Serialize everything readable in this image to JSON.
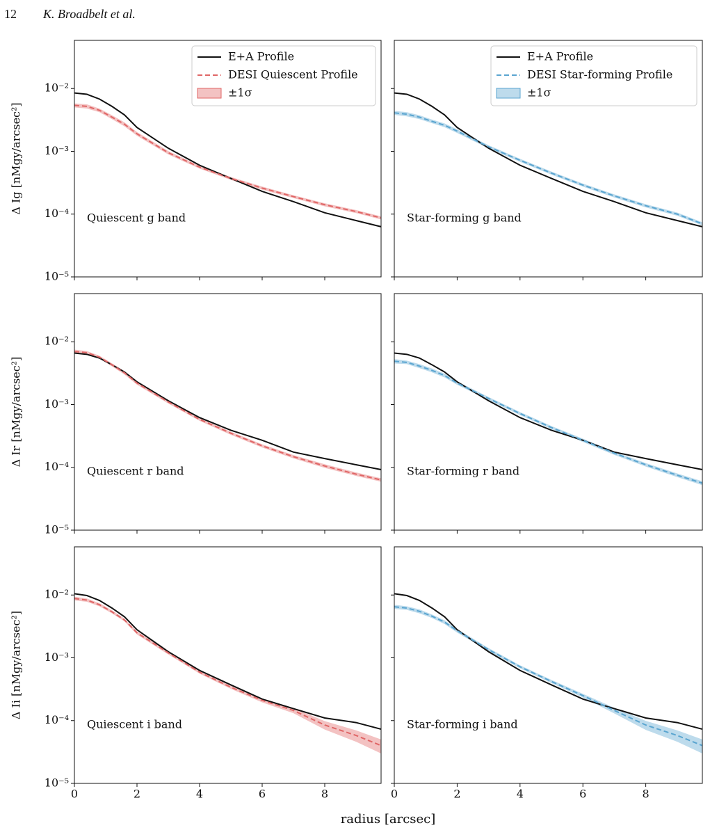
{
  "header": {
    "page": "12",
    "authors": "K. Broadbelt et al."
  },
  "chart_data": [
    {
      "type": "line",
      "ylabel": "Δ Ig [nMgy/arcsec²]",
      "annotation": "Quiescent g band",
      "legend": "upper right",
      "log": true,
      "xlim": [
        0,
        9.8
      ],
      "xticks": [
        0,
        2,
        4,
        6,
        8
      ],
      "ylim": [
        1e-05,
        0.0585
      ],
      "yticks": [
        {
          "value": 1e-05,
          "label": "10⁻⁵"
        },
        {
          "value": 0.0001,
          "label": "10⁻⁴"
        },
        {
          "value": 0.001,
          "label": "10⁻³"
        },
        {
          "value": 0.01,
          "label": "10⁻²"
        }
      ],
      "x": [
        0,
        0.4,
        0.8,
        1.2,
        1.6,
        2,
        3,
        4,
        5,
        6,
        7,
        8,
        9,
        9.8
      ],
      "series": [
        {
          "name": "E+A Profile",
          "color": "#111111",
          "values": [
            0.0085,
            0.0081,
            0.0068,
            0.0052,
            0.0038,
            0.0024,
            0.00112,
            0.0006,
            0.00037,
            0.00023,
            0.000158,
            0.000105,
            7.9e-05,
            6.3e-05
          ]
        },
        {
          "name": "DESI Quiescent Profile",
          "color": "#e06666",
          "sigma_name": "±1σ",
          "values": [
            0.0054,
            0.0052,
            0.0045,
            0.0035,
            0.0027,
            0.0019,
            0.00095,
            0.00056,
            0.00037,
            0.00026,
            0.00019,
            0.000141,
            0.00011,
            8.7e-05
          ],
          "sigma": [
            0.0004,
            0.0004,
            0.0003,
            0.00025,
            0.0002,
            0.00013,
            6e-05,
            3e-05,
            2e-05,
            1.5e-05,
            1e-05,
            8e-06,
            6e-06,
            5e-06
          ]
        }
      ]
    },
    {
      "type": "line",
      "annotation": "Star-forming g band",
      "legend": "upper right",
      "log": true,
      "xlim": [
        0,
        9.8
      ],
      "xticks": [
        0,
        2,
        4,
        6,
        8
      ],
      "ylim": [
        1e-05,
        0.0585
      ],
      "yticks": [
        1e-05,
        0.0001,
        0.001,
        0.01
      ],
      "x": [
        0,
        0.4,
        0.8,
        1.2,
        1.6,
        2,
        3,
        4,
        5,
        6,
        7,
        8,
        9,
        9.8
      ],
      "series": [
        {
          "name": "E+A Profile",
          "color": "#111111",
          "values": [
            0.0085,
            0.0081,
            0.0068,
            0.0052,
            0.0038,
            0.0024,
            0.00112,
            0.0006,
            0.00037,
            0.00023,
            0.000158,
            0.000105,
            7.9e-05,
            6.3e-05
          ]
        },
        {
          "name": "DESI Star-forming Profile",
          "color": "#5aa5d0",
          "sigma_name": "±1σ",
          "values": [
            0.0041,
            0.0039,
            0.0035,
            0.003,
            0.0026,
            0.0021,
            0.00118,
            0.00072,
            0.00045,
            0.00029,
            0.000195,
            0.000136,
            0.0001,
            7e-05
          ],
          "sigma": [
            0.0003,
            0.0003,
            0.00025,
            0.0002,
            0.00018,
            0.00014,
            7e-05,
            4e-05,
            2.5e-05,
            1.6e-05,
            1.1e-05,
            8e-06,
            6e-06,
            4e-06
          ]
        }
      ]
    },
    {
      "type": "line",
      "ylabel": "Δ Ir [nMgy/arcsec²]",
      "annotation": "Quiescent r band",
      "log": true,
      "xlim": [
        0,
        9.8
      ],
      "xticks": [
        0,
        2,
        4,
        6,
        8
      ],
      "ylim": [
        1e-05,
        0.0585
      ],
      "yticks": [
        {
          "value": 1e-05,
          "label": "10⁻⁵"
        },
        {
          "value": 0.0001,
          "label": "10⁻⁴"
        },
        {
          "value": 0.001,
          "label": "10⁻³"
        },
        {
          "value": 0.01,
          "label": "10⁻²"
        }
      ],
      "x": [
        0,
        0.4,
        0.8,
        1.2,
        1.6,
        2,
        3,
        4,
        5,
        6,
        7,
        8,
        9,
        9.8
      ],
      "series": [
        {
          "name": "E+A Profile",
          "color": "#111111",
          "values": [
            0.0066,
            0.0063,
            0.0055,
            0.0043,
            0.0033,
            0.0023,
            0.00115,
            0.00062,
            0.00039,
            0.00027,
            0.000175,
            0.000138,
            0.00011,
            9.2e-05
          ]
        },
        {
          "name": "DESI Quiescent Profile",
          "color": "#e06666",
          "sigma_name": "±1σ",
          "values": [
            0.007,
            0.0067,
            0.0057,
            0.0043,
            0.0032,
            0.0022,
            0.0011,
            0.00058,
            0.00035,
            0.00022,
            0.000148,
            0.000105,
            7.8e-05,
            6.3e-05
          ],
          "sigma": [
            0.0005,
            0.0004,
            0.0003,
            0.00025,
            0.0002,
            0.00013,
            6e-05,
            3e-05,
            2e-05,
            1.3e-05,
            9e-06,
            7e-06,
            5e-06,
            4e-06
          ]
        }
      ]
    },
    {
      "type": "line",
      "annotation": "Star-forming r band",
      "log": true,
      "xlim": [
        0,
        9.8
      ],
      "xticks": [
        0,
        2,
        4,
        6,
        8
      ],
      "ylim": [
        1e-05,
        0.0585
      ],
      "yticks": [
        1e-05,
        0.0001,
        0.001,
        0.01
      ],
      "x": [
        0,
        0.4,
        0.8,
        1.2,
        1.6,
        2,
        3,
        4,
        5,
        6,
        7,
        8,
        9,
        9.8
      ],
      "series": [
        {
          "name": "E+A Profile",
          "color": "#111111",
          "values": [
            0.0066,
            0.0063,
            0.0055,
            0.0043,
            0.0033,
            0.0023,
            0.00115,
            0.00062,
            0.00039,
            0.00027,
            0.000175,
            0.000138,
            0.00011,
            9.2e-05
          ]
        },
        {
          "name": "DESI Star-forming Profile",
          "color": "#5aa5d0",
          "sigma_name": "±1σ",
          "values": [
            0.0049,
            0.0047,
            0.0041,
            0.0035,
            0.0029,
            0.0022,
            0.00125,
            0.00072,
            0.00043,
            0.00027,
            0.000168,
            0.00011,
            7.5e-05,
            5.6e-05
          ],
          "sigma": [
            0.0004,
            0.0003,
            0.0003,
            0.00025,
            0.0002,
            0.00014,
            7e-05,
            4e-05,
            2.5e-05,
            1.6e-05,
            1e-05,
            7e-06,
            5e-06,
            4e-06
          ]
        }
      ]
    },
    {
      "type": "line",
      "ylabel": "Δ Ii [nMgy/arcsec²]",
      "annotation": "Quiescent i band",
      "xlabel": "radius [arcsec]",
      "log": true,
      "xlim": [
        0,
        9.8
      ],
      "xticks": [
        0,
        2,
        4,
        6,
        8
      ],
      "ylim": [
        1e-05,
        0.0585
      ],
      "yticks": [
        {
          "value": 1e-05,
          "label": "10⁻⁵"
        },
        {
          "value": 0.0001,
          "label": "10⁻⁴"
        },
        {
          "value": 0.001,
          "label": "10⁻³"
        },
        {
          "value": 0.01,
          "label": "10⁻²"
        }
      ],
      "x": [
        0,
        0.4,
        0.8,
        1.2,
        1.6,
        2,
        3,
        4,
        5,
        6,
        7,
        8,
        9,
        9.8
      ],
      "series": [
        {
          "name": "E+A Profile",
          "color": "#111111",
          "values": [
            0.0105,
            0.0098,
            0.0082,
            0.0062,
            0.0045,
            0.0028,
            0.00125,
            0.00063,
            0.00037,
            0.00022,
            0.000155,
            0.00011,
            9.3e-05,
            7.3e-05
          ]
        },
        {
          "name": "DESI Quiescent Profile",
          "color": "#e06666",
          "sigma_name": "±1σ",
          "values": [
            0.0088,
            0.0083,
            0.007,
            0.0054,
            0.004,
            0.0025,
            0.0012,
            0.00059,
            0.00034,
            0.00021,
            0.000145,
            8.5e-05,
            5.8e-05,
            4e-05
          ],
          "sigma": [
            0.0006,
            0.0005,
            0.0004,
            0.0003,
            0.0002,
            0.00015,
            7e-05,
            3e-05,
            2e-05,
            1.5e-05,
            1.4e-05,
            1.3e-05,
            1.2e-05,
            1e-05
          ]
        }
      ]
    },
    {
      "type": "line",
      "annotation": "Star-forming i band",
      "log": true,
      "xlim": [
        0,
        9.8
      ],
      "xticks": [
        0,
        2,
        4,
        6,
        8
      ],
      "ylim": [
        1e-05,
        0.0585
      ],
      "yticks": [
        1e-05,
        0.0001,
        0.001,
        0.01
      ],
      "x": [
        0,
        0.4,
        0.8,
        1.2,
        1.6,
        2,
        3,
        4,
        5,
        6,
        7,
        8,
        9,
        9.8
      ],
      "series": [
        {
          "name": "E+A Profile",
          "color": "#111111",
          "values": [
            0.0105,
            0.0098,
            0.0082,
            0.0062,
            0.0045,
            0.0028,
            0.00125,
            0.00063,
            0.00037,
            0.00022,
            0.000155,
            0.00011,
            9.3e-05,
            7.3e-05
          ]
        },
        {
          "name": "DESI Star-forming Profile",
          "color": "#5aa5d0",
          "sigma_name": "±1σ",
          "values": [
            0.0065,
            0.0062,
            0.0055,
            0.0046,
            0.0037,
            0.0027,
            0.00135,
            0.00072,
            0.00042,
            0.00025,
            0.000145,
            8.5e-05,
            5.8e-05,
            4e-05
          ],
          "sigma": [
            0.0005,
            0.0004,
            0.0004,
            0.0003,
            0.00025,
            0.00018,
            8e-05,
            4e-05,
            2.5e-05,
            1.7e-05,
            1.5e-05,
            1.4e-05,
            1.2e-05,
            1e-05
          ]
        }
      ]
    }
  ]
}
